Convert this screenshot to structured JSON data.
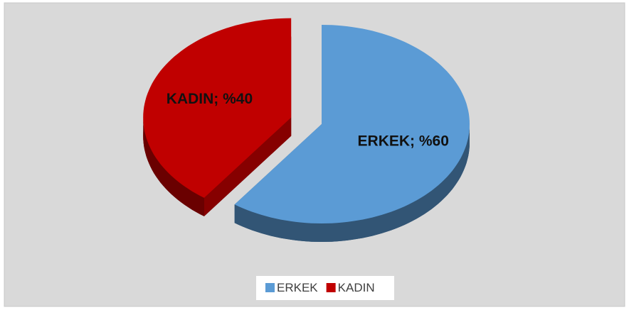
{
  "chart_data": {
    "type": "pie",
    "categories": [
      "ERKEK",
      "KADIN"
    ],
    "values": [
      60,
      40
    ],
    "value_labels": [
      "ERKEK; %60",
      "KADIN; %40"
    ],
    "colors": [
      "#5b9bd5",
      "#c00000"
    ],
    "legend": "bottom"
  }
}
